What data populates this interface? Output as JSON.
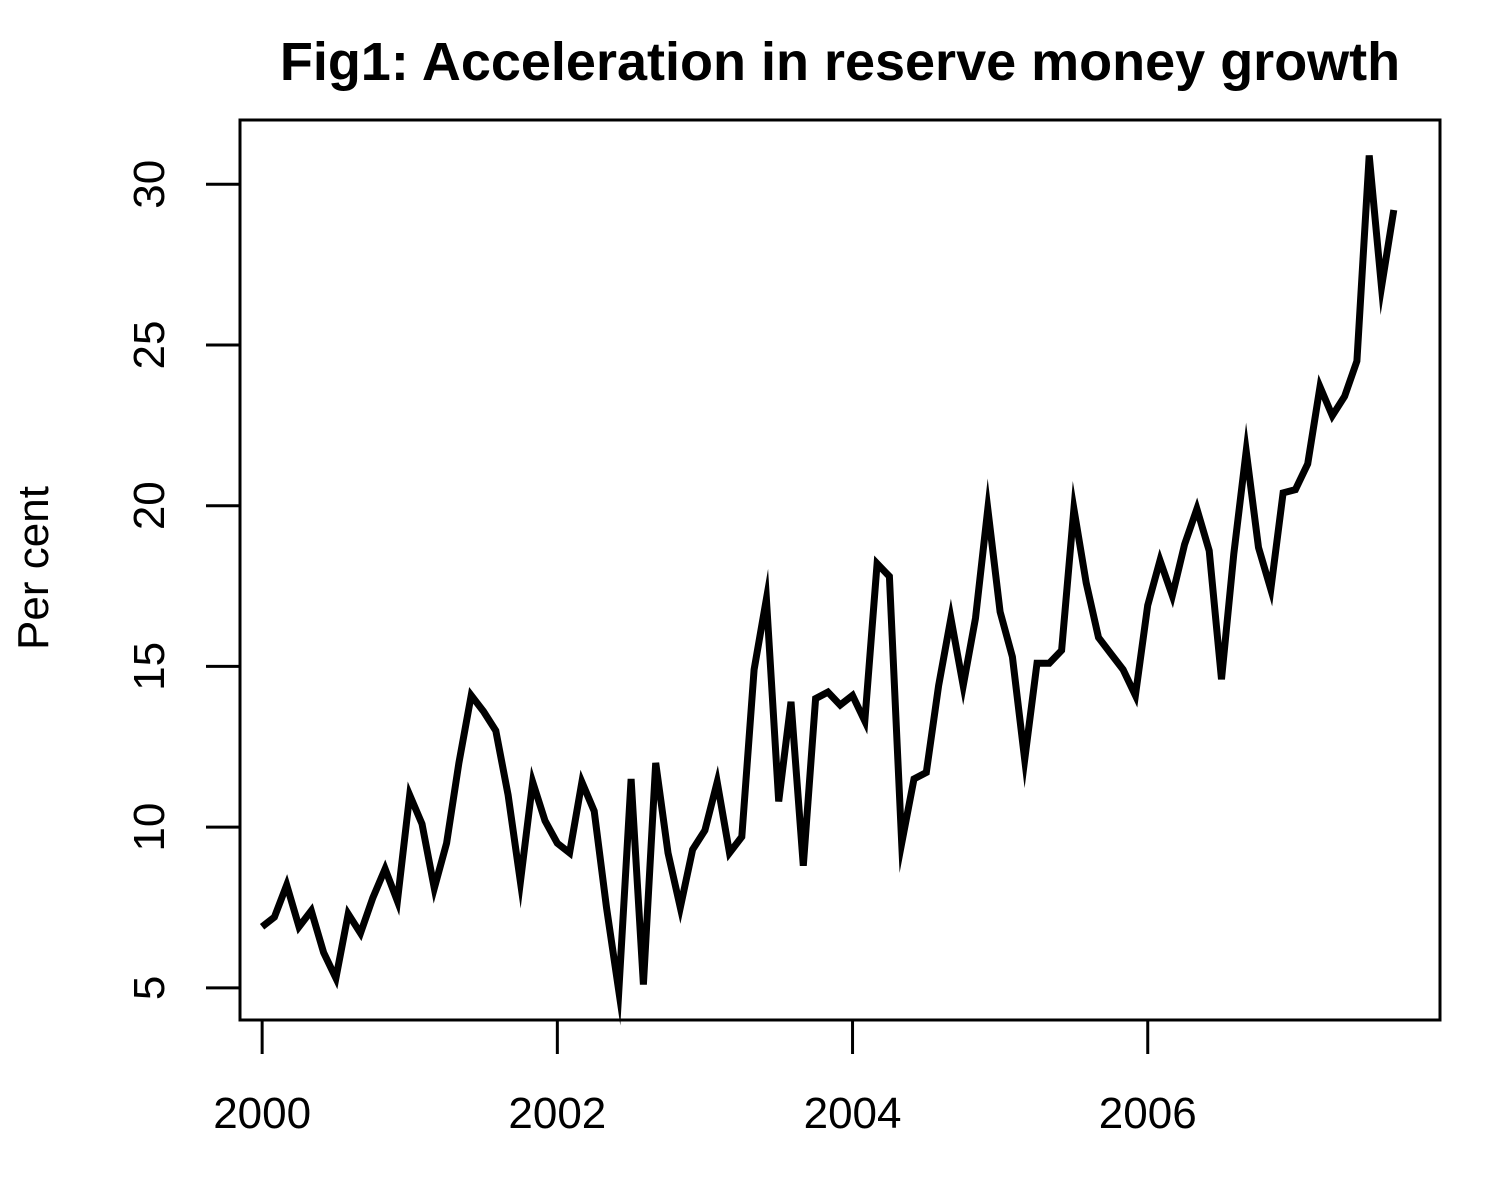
{
  "chart_data": {
    "type": "line",
    "title": "Fig1: Acceleration in reserve money growth",
    "xlabel": "",
    "ylabel": "Per cent",
    "xlim": [
      1999.85,
      2007.98
    ],
    "ylim": [
      4.0,
      32.0
    ],
    "x_ticks": [
      2000,
      2002,
      2004,
      2006
    ],
    "x_tick_labels": [
      "2000",
      "2002",
      "2004",
      "2006"
    ],
    "y_ticks": [
      5,
      10,
      15,
      20,
      25,
      30
    ],
    "y_tick_labels": [
      "5",
      "10",
      "15",
      "20",
      "25",
      "30"
    ],
    "grid": false,
    "legend": "none",
    "line_color": "#000000",
    "x_start": 2000.0,
    "x_step_months": 1,
    "series": [
      {
        "values": [
          6.9,
          7.2,
          8.2,
          6.9,
          7.4,
          6.1,
          5.3,
          7.3,
          6.7,
          7.8,
          8.7,
          7.7,
          11.0,
          10.1,
          8.1,
          9.5,
          12.0,
          14.1,
          13.6,
          13.0,
          11.0,
          8.3,
          11.4,
          10.2,
          9.5,
          9.2,
          11.4,
          10.5,
          7.5,
          4.9,
          11.5,
          5.1,
          12.0,
          9.2,
          7.5,
          9.3,
          9.9,
          11.4,
          9.2,
          9.7,
          14.9,
          17.1,
          10.8,
          13.9,
          8.8,
          14.0,
          14.2,
          13.8,
          14.1,
          13.3,
          18.2,
          17.8,
          9.5,
          11.5,
          11.7,
          14.4,
          16.5,
          14.4,
          16.5,
          19.9,
          16.7,
          15.3,
          12.1,
          15.1,
          15.1,
          15.5,
          19.9,
          17.6,
          15.9,
          15.4,
          14.9,
          14.1,
          16.9,
          18.3,
          17.2,
          18.8,
          19.9,
          18.6,
          14.6,
          18.5,
          21.7,
          18.7,
          17.4,
          20.4,
          20.5,
          21.3,
          23.7,
          22.8,
          23.4,
          24.5,
          30.9,
          26.8,
          29.2
        ]
      }
    ]
  }
}
